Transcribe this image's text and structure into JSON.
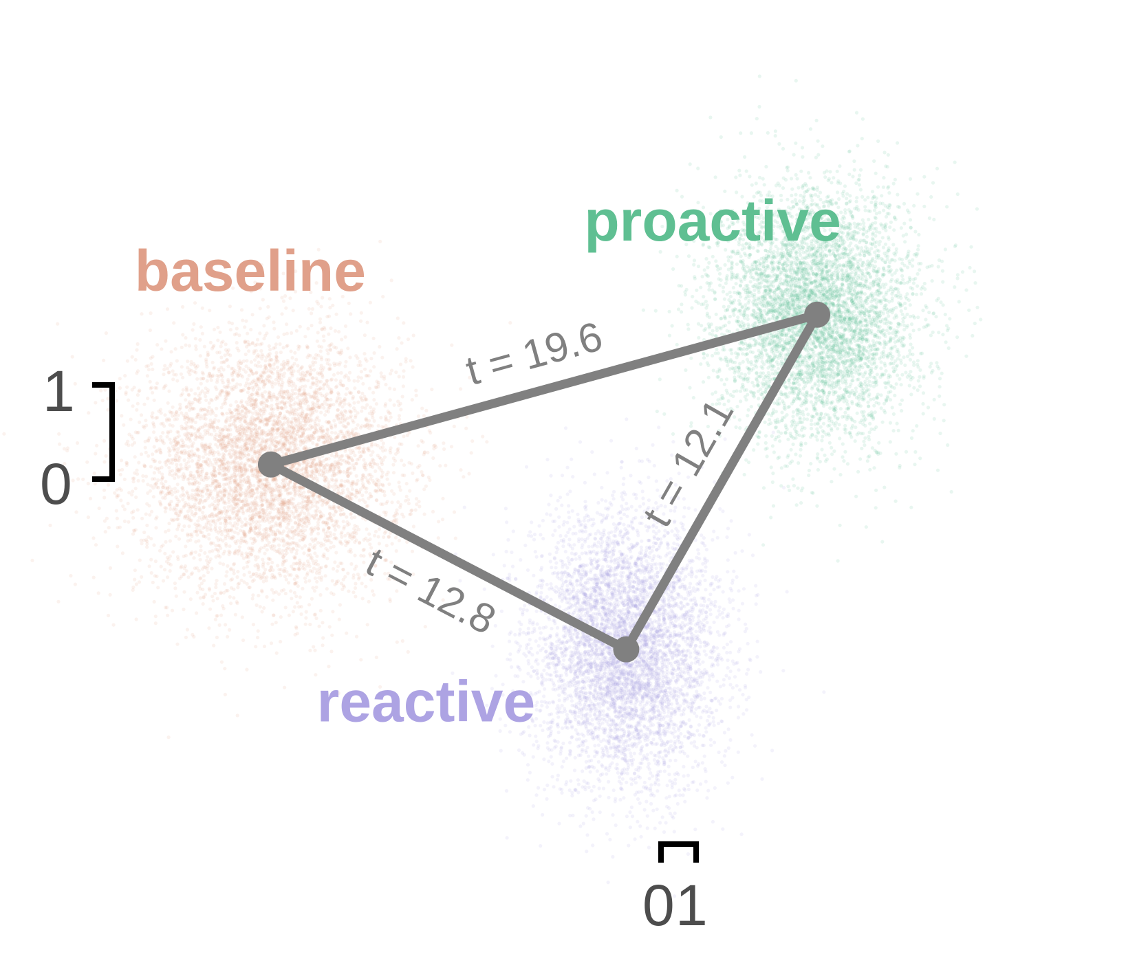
{
  "chart_data": {
    "type": "scatter",
    "title": "",
    "xlabel": "",
    "ylabel": "",
    "xlim": [
      -13.1,
      12.5
    ],
    "ylim": [
      -10.2,
      9.3
    ],
    "grid": false,
    "legend": "none",
    "x_scale_bar": {
      "ticks": [
        "0",
        "1"
      ]
    },
    "y_scale_bar": {
      "ticks": [
        "0",
        "1"
      ]
    },
    "series": [
      {
        "name": "baseline",
        "color": "#e0a08a",
        "center": [
          -7.0,
          0.0
        ],
        "spread": [
          2.4,
          2.1
        ]
      },
      {
        "name": "proactive",
        "color": "#5fbf92",
        "center": [
          5.3,
          3.0
        ],
        "spread": [
          1.8,
          2.0
        ]
      },
      {
        "name": "reactive",
        "color": "#ada3e3",
        "center": [
          1.0,
          -3.7
        ],
        "spread": [
          1.7,
          2.2
        ]
      }
    ],
    "centroids": [
      {
        "group": "baseline",
        "x": -7.0,
        "y": 0.0
      },
      {
        "group": "proactive",
        "x": 5.3,
        "y": 3.0
      },
      {
        "group": "reactive",
        "x": 1.0,
        "y": -3.7
      }
    ],
    "edges": [
      {
        "from": "baseline",
        "to": "proactive",
        "label": "t = 19.6"
      },
      {
        "from": "baseline",
        "to": "reactive",
        "label": "t = 12.8"
      },
      {
        "from": "reactive",
        "to": "proactive",
        "label": "t = 12.1"
      }
    ],
    "edge_color": "#808080"
  }
}
